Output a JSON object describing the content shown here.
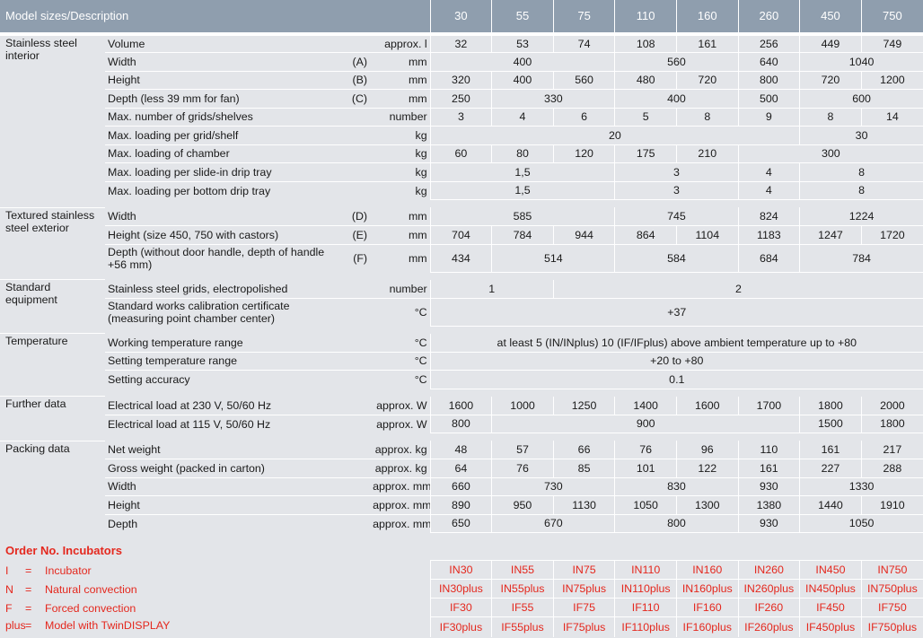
{
  "header": {
    "title": "Model sizes/Description",
    "models": [
      "30",
      "55",
      "75",
      "110",
      "160",
      "260",
      "450",
      "750"
    ]
  },
  "sections": [
    {
      "name": "Stainless steel interior",
      "rows": [
        {
          "desc": "Volume",
          "abbr": "",
          "unit": "approx. l",
          "values": [
            [
              "32",
              1
            ],
            [
              "53",
              1
            ],
            [
              "74",
              1
            ],
            [
              "108",
              1
            ],
            [
              "161",
              1
            ],
            [
              "256",
              1
            ],
            [
              "449",
              1
            ],
            [
              "749",
              1
            ]
          ]
        },
        {
          "desc": "Width",
          "abbr": "(A)",
          "unit": "mm",
          "values": [
            [
              "400",
              3
            ],
            [
              "560",
              2
            ],
            [
              "640",
              1
            ],
            [
              "1040",
              2
            ]
          ]
        },
        {
          "desc": "Height",
          "abbr": "(B)",
          "unit": "mm",
          "values": [
            [
              "320",
              1
            ],
            [
              "400",
              1
            ],
            [
              "560",
              1
            ],
            [
              "480",
              1
            ],
            [
              "720",
              1
            ],
            [
              "800",
              1
            ],
            [
              "720",
              1
            ],
            [
              "1200",
              1
            ]
          ]
        },
        {
          "desc": "Depth (less 39 mm for fan)",
          "abbr": "(C)",
          "unit": "mm",
          "values": [
            [
              "250",
              1
            ],
            [
              "330",
              2
            ],
            [
              "400",
              2
            ],
            [
              "500",
              1
            ],
            [
              "600",
              2
            ]
          ]
        },
        {
          "desc": "Max. number of grids/shelves",
          "abbr": "",
          "unit": "number",
          "values": [
            [
              "3",
              1
            ],
            [
              "4",
              1
            ],
            [
              "6",
              1
            ],
            [
              "5",
              1
            ],
            [
              "8",
              1
            ],
            [
              "9",
              1
            ],
            [
              "8",
              1
            ],
            [
              "14",
              1
            ]
          ]
        },
        {
          "desc": "Max. loading per grid/shelf",
          "abbr": "",
          "unit": "kg",
          "values": [
            [
              "20",
              6
            ],
            [
              "30",
              2
            ]
          ]
        },
        {
          "desc": "Max. loading of chamber",
          "abbr": "",
          "unit": "kg",
          "values": [
            [
              "60",
              1
            ],
            [
              "80",
              1
            ],
            [
              "120",
              1
            ],
            [
              "175",
              1
            ],
            [
              "210",
              1
            ],
            [
              "300",
              3
            ]
          ]
        },
        {
          "desc": "Max. loading per slide-in drip tray",
          "abbr": "",
          "unit": "kg",
          "values": [
            [
              "1,5",
              3
            ],
            [
              "3",
              2
            ],
            [
              "4",
              1
            ],
            [
              "8",
              2
            ]
          ]
        },
        {
          "desc": "Max. loading per bottom drip tray",
          "abbr": "",
          "unit": "kg",
          "values": [
            [
              "1,5",
              3
            ],
            [
              "3",
              2
            ],
            [
              "4",
              1
            ],
            [
              "8",
              2
            ]
          ]
        }
      ]
    },
    {
      "name": "Textured stainless steel exterior",
      "rows": [
        {
          "desc": "Width",
          "abbr": "(D)",
          "unit": "mm",
          "values": [
            [
              "585",
              3
            ],
            [
              "745",
              2
            ],
            [
              "824",
              1
            ],
            [
              "1224",
              2
            ]
          ]
        },
        {
          "desc": "Height (size 450, 750 with castors)",
          "abbr": "(E)",
          "unit": "mm",
          "values": [
            [
              "704",
              1
            ],
            [
              "784",
              1
            ],
            [
              "944",
              1
            ],
            [
              "864",
              1
            ],
            [
              "1104",
              1
            ],
            [
              "1183",
              1
            ],
            [
              "1247",
              1
            ],
            [
              "1720",
              1
            ]
          ]
        },
        {
          "desc": "Depth (without door handle, depth of handle +56 mm)",
          "abbr": "(F)",
          "unit": "mm",
          "values": [
            [
              "434",
              1
            ],
            [
              "514",
              2
            ],
            [
              "584",
              2
            ],
            [
              "684",
              1
            ],
            [
              "784",
              2
            ]
          ],
          "tall": true
        }
      ]
    },
    {
      "name": "Standard equipment",
      "rows": [
        {
          "desc": "Stainless steel grids, electropolished",
          "abbr": "",
          "unit": "number",
          "values": [
            [
              "1",
              2
            ],
            [
              "2",
              6
            ]
          ]
        },
        {
          "desc": "Standard works calibration certificate (measuring point chamber center)",
          "abbr": "",
          "unit": "°C",
          "values": [
            [
              "+37",
              8
            ]
          ],
          "tall": true
        }
      ]
    },
    {
      "name": "Temperature",
      "rows": [
        {
          "desc": "Working temperature range",
          "abbr": "",
          "unit": "°C",
          "values": [
            [
              "at least 5 (IN/INplus) 10 (IF/IFplus) above ambient temperature up to +80",
              8
            ]
          ]
        },
        {
          "desc": "Setting temperature range",
          "abbr": "",
          "unit": "°C",
          "values": [
            [
              "+20 to +80",
              8
            ]
          ]
        },
        {
          "desc": "Setting accuracy",
          "abbr": "",
          "unit": "°C",
          "values": [
            [
              "0.1",
              8
            ]
          ]
        }
      ]
    },
    {
      "name": "Further data",
      "rows": [
        {
          "desc": "Electrical load at 230 V, 50/60 Hz",
          "abbr": "",
          "unit": "approx. W",
          "values": [
            [
              "1600",
              1
            ],
            [
              "1000",
              1
            ],
            [
              "1250",
              1
            ],
            [
              "1400",
              1
            ],
            [
              "1600",
              1
            ],
            [
              "1700",
              1
            ],
            [
              "1800",
              1
            ],
            [
              "2000",
              1
            ]
          ]
        },
        {
          "desc": "Electrical load at 115 V, 50/60 Hz",
          "abbr": "",
          "unit": "approx. W",
          "values": [
            [
              "800",
              1
            ],
            [
              "900",
              5
            ],
            [
              "1500",
              1
            ],
            [
              "1800",
              1
            ]
          ]
        }
      ]
    },
    {
      "name": "Packing data",
      "rows": [
        {
          "desc": "Net weight",
          "abbr": "",
          "unit": "approx. kg",
          "values": [
            [
              "48",
              1
            ],
            [
              "57",
              1
            ],
            [
              "66",
              1
            ],
            [
              "76",
              1
            ],
            [
              "96",
              1
            ],
            [
              "110",
              1
            ],
            [
              "161",
              1
            ],
            [
              "217",
              1
            ]
          ]
        },
        {
          "desc": "Gross weight (packed in carton)",
          "abbr": "",
          "unit": "approx. kg",
          "values": [
            [
              "64",
              1
            ],
            [
              "76",
              1
            ],
            [
              "85",
              1
            ],
            [
              "101",
              1
            ],
            [
              "122",
              1
            ],
            [
              "161",
              1
            ],
            [
              "227",
              1
            ],
            [
              "288",
              1
            ]
          ]
        },
        {
          "desc": "Width",
          "abbr": "",
          "unit": "approx. mm",
          "values": [
            [
              "660",
              1
            ],
            [
              "730",
              2
            ],
            [
              "830",
              2
            ],
            [
              "930",
              1
            ],
            [
              "1330",
              2
            ]
          ]
        },
        {
          "desc": "Height",
          "abbr": "",
          "unit": "approx. mm",
          "values": [
            [
              "890",
              1
            ],
            [
              "950",
              1
            ],
            [
              "1130",
              1
            ],
            [
              "1050",
              1
            ],
            [
              "1300",
              1
            ],
            [
              "1380",
              1
            ],
            [
              "1440",
              1
            ],
            [
              "1910",
              1
            ]
          ]
        },
        {
          "desc": "Depth",
          "abbr": "",
          "unit": "approx. mm",
          "values": [
            [
              "650",
              1
            ],
            [
              "670",
              2
            ],
            [
              "800",
              2
            ],
            [
              "930",
              1
            ],
            [
              "1050",
              2
            ]
          ]
        }
      ]
    }
  ],
  "order": {
    "title": "Order No. Incubators",
    "legend": [
      {
        "key": "I",
        "eq": "=",
        "text": "Incubator"
      },
      {
        "key": "N",
        "eq": "=",
        "text": "Natural convection"
      },
      {
        "key": "F",
        "eq": "=",
        "text": "Forced convection"
      },
      {
        "key": "plus",
        "eq": "=",
        "text": "Model with TwinDISPLAY"
      }
    ],
    "rows": [
      [
        "IN30",
        "IN55",
        "IN75",
        "IN110",
        "IN160",
        "IN260",
        "IN450",
        "IN750"
      ],
      [
        "IN30plus",
        "IN55plus",
        "IN75plus",
        "IN110plus",
        "IN160plus",
        "IN260plus",
        "IN450plus",
        "IN750plus"
      ],
      [
        "IF30",
        "IF55",
        "IF75",
        "IF110",
        "IF160",
        "IF260",
        "IF450",
        "IF750"
      ],
      [
        "IF30plus",
        "IF55plus",
        "IF75plus",
        "IF110plus",
        "IF160plus",
        "IF260plus",
        "IF450plus",
        "IF750plus"
      ]
    ]
  },
  "colors": {
    "header_bg": "#8f9eae",
    "page_bg": "#e3e5e9",
    "accent_red": "#e4281e"
  }
}
